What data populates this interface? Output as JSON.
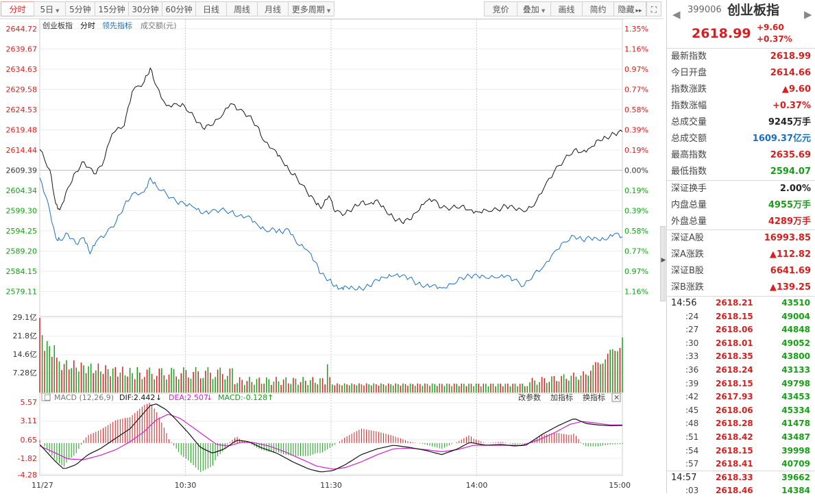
{
  "toolbar": {
    "left": [
      {
        "label": "分时",
        "active": true,
        "dd": false
      },
      {
        "label": "5日",
        "active": false,
        "dd": true
      },
      {
        "label": "5分钟",
        "active": false,
        "dd": false
      },
      {
        "label": "15分钟",
        "active": false,
        "dd": false
      },
      {
        "label": "30分钟",
        "active": false,
        "dd": false
      },
      {
        "label": "60分钟",
        "active": false,
        "dd": false
      },
      {
        "label": "日线",
        "active": false,
        "dd": false
      },
      {
        "label": "周线",
        "active": false,
        "dd": false
      },
      {
        "label": "月线",
        "active": false,
        "dd": false
      },
      {
        "label": "更多周期",
        "active": false,
        "dd": true
      }
    ],
    "right": [
      {
        "label": "竞价",
        "dd": false
      },
      {
        "label": "叠加",
        "dd": true
      },
      {
        "label": "画线",
        "dd": false
      },
      {
        "label": "简约",
        "dd": false
      },
      {
        "label": "隐藏",
        "dd": false,
        "arrows": "▸▸"
      }
    ],
    "fullscreen_icon": "fullscreen-icon"
  },
  "legend": {
    "name": "创业板指",
    "mode": "分时",
    "lead": "领先指标",
    "turnover": "成交额(元)"
  },
  "price_axis": {
    "left": [
      "2644.72",
      "2639.67",
      "2634.63",
      "2629.58",
      "2624.53",
      "2619.48",
      "2614.44",
      "2609.39",
      "2604.34",
      "2599.30",
      "2594.25",
      "2589.20",
      "2584.15",
      "2579.11"
    ],
    "right": [
      "1.35%",
      "1.16%",
      "0.97%",
      "0.77%",
      "0.58%",
      "0.39%",
      "0.19%",
      "0.00%",
      "0.19%",
      "0.39%",
      "0.58%",
      "0.77%",
      "0.97%",
      "1.16%"
    ]
  },
  "volume_axis": [
    "29.1亿",
    "21.8亿",
    "14.6亿",
    "7.28亿"
  ],
  "macd": {
    "title": "MACD (12,26,9)",
    "dif": "DIF:2.442",
    "dea": "DEA:2.507",
    "macd": "MACD:-0.128",
    "change_params": "改参数",
    "add_indicator": "加指标",
    "switch_indicator": "换指标",
    "axis": [
      "5.57",
      "3.11",
      "0.65",
      "-1.82",
      "-4.28"
    ]
  },
  "time_axis": [
    "11/27",
    "10:30",
    "11:30",
    "14:00",
    "15:00"
  ],
  "chart_data": {
    "type": "line",
    "x_range": [
      "09:30",
      "15:00"
    ],
    "ylim": [
      2579.11,
      2644.72
    ],
    "prev_close": 2609.39,
    "series": [
      {
        "name": "创业板指",
        "color": "#111111",
        "points": [
          [
            0,
            2614.6
          ],
          [
            5,
            2609.5
          ],
          [
            8,
            2601.0
          ],
          [
            10,
            2599.5
          ],
          [
            14,
            2605.0
          ],
          [
            18,
            2609.0
          ],
          [
            22,
            2611.5
          ],
          [
            27,
            2608.5
          ],
          [
            31,
            2610.5
          ],
          [
            36,
            2618.5
          ],
          [
            42,
            2620.5
          ],
          [
            46,
            2629.0
          ],
          [
            52,
            2631.5
          ],
          [
            55,
            2634.9
          ],
          [
            58,
            2630.5
          ],
          [
            63,
            2625.5
          ],
          [
            68,
            2626.0
          ],
          [
            72,
            2625.5
          ],
          [
            77,
            2622.5
          ],
          [
            81,
            2620.0
          ],
          [
            85,
            2620.5
          ],
          [
            90,
            2622.5
          ],
          [
            95,
            2626.0
          ],
          [
            99,
            2624.5
          ],
          [
            104,
            2623.0
          ],
          [
            108,
            2620.5
          ],
          [
            112,
            2616.5
          ],
          [
            117,
            2614.5
          ],
          [
            120,
            2612.5
          ],
          [
            124,
            2609.5
          ],
          [
            128,
            2607.5
          ],
          [
            133,
            2604.0
          ],
          [
            137,
            2601.5
          ],
          [
            140,
            2599.8
          ],
          [
            144,
            2603.0
          ],
          [
            147,
            2599.0
          ],
          [
            152,
            2598.5
          ],
          [
            156,
            2600.0
          ],
          [
            160,
            2601.5
          ],
          [
            164,
            2601.0
          ],
          [
            168,
            2602.0
          ],
          [
            172,
            2599.5
          ],
          [
            176,
            2597.5
          ],
          [
            180,
            2596.5
          ],
          [
            184,
            2597.0
          ],
          [
            188,
            2599.0
          ],
          [
            192,
            2601.5
          ],
          [
            196,
            2602.0
          ],
          [
            200,
            2600.0
          ],
          [
            205,
            2600.0
          ],
          [
            210,
            2600.5
          ],
          [
            214,
            2599.5
          ],
          [
            218,
            2599.0
          ],
          [
            222,
            2599.5
          ],
          [
            228,
            2599.5
          ],
          [
            232,
            2600.5
          ],
          [
            236,
            2600.0
          ],
          [
            241,
            2599.0
          ],
          [
            246,
            2600.5
          ],
          [
            251,
            2605.0
          ],
          [
            256,
            2609.0
          ],
          [
            261,
            2612.0
          ],
          [
            266,
            2614.5
          ],
          [
            270,
            2614.0
          ],
          [
            274,
            2615.0
          ],
          [
            278,
            2617.0
          ],
          [
            282,
            2617.5
          ],
          [
            286,
            2618.5
          ],
          [
            290,
            2619.0
          ]
        ]
      },
      {
        "name": "领先指标",
        "color": "#1a6fc0",
        "points": [
          [
            0,
            2607.5
          ],
          [
            4,
            2601.5
          ],
          [
            8,
            2592.5
          ],
          [
            10,
            2592.0
          ],
          [
            14,
            2593.5
          ],
          [
            18,
            2591.0
          ],
          [
            22,
            2592.5
          ],
          [
            25,
            2588.5
          ],
          [
            28,
            2591.5
          ],
          [
            33,
            2593.5
          ],
          [
            38,
            2596.5
          ],
          [
            42,
            2600.5
          ],
          [
            46,
            2603.5
          ],
          [
            52,
            2604.0
          ],
          [
            55,
            2607.5
          ],
          [
            58,
            2605.5
          ],
          [
            63,
            2603.5
          ],
          [
            68,
            2601.5
          ],
          [
            72,
            2601.0
          ],
          [
            77,
            2600.0
          ],
          [
            81,
            2598.5
          ],
          [
            85,
            2599.0
          ],
          [
            90,
            2599.5
          ],
          [
            95,
            2599.0
          ],
          [
            99,
            2598.0
          ],
          [
            104,
            2598.0
          ],
          [
            108,
            2596.0
          ],
          [
            112,
            2594.5
          ],
          [
            117,
            2594.5
          ],
          [
            120,
            2594.0
          ],
          [
            124,
            2594.5
          ],
          [
            128,
            2591.0
          ],
          [
            133,
            2589.5
          ],
          [
            137,
            2586.5
          ],
          [
            140,
            2583.5
          ],
          [
            144,
            2582.0
          ],
          [
            147,
            2580.5
          ],
          [
            150,
            2579.9
          ],
          [
            152,
            2580.5
          ],
          [
            156,
            2580.0
          ],
          [
            160,
            2579.8
          ],
          [
            164,
            2580.5
          ],
          [
            168,
            2582.0
          ],
          [
            172,
            2582.5
          ],
          [
            176,
            2583.0
          ],
          [
            180,
            2583.0
          ],
          [
            184,
            2582.5
          ],
          [
            188,
            2581.0
          ],
          [
            192,
            2580.5
          ],
          [
            196,
            2580.8
          ],
          [
            200,
            2580.0
          ],
          [
            205,
            2581.0
          ],
          [
            210,
            2582.5
          ],
          [
            214,
            2583.0
          ],
          [
            218,
            2583.0
          ],
          [
            222,
            2582.5
          ],
          [
            228,
            2582.5
          ],
          [
            232,
            2583.0
          ],
          [
            236,
            2582.0
          ],
          [
            241,
            2580.5
          ],
          [
            246,
            2583.5
          ],
          [
            251,
            2585.5
          ],
          [
            256,
            2589.0
          ],
          [
            261,
            2591.5
          ],
          [
            266,
            2593.0
          ],
          [
            270,
            2592.0
          ],
          [
            274,
            2592.5
          ],
          [
            278,
            2592.0
          ],
          [
            282,
            2592.0
          ],
          [
            286,
            2593.5
          ],
          [
            290,
            2592.8
          ]
        ]
      }
    ],
    "volume": {
      "ylim": [
        0,
        29.1
      ],
      "unit": "亿"
    },
    "macd_range": [
      -4.28,
      5.57
    ]
  },
  "panel": {
    "code": "399006",
    "name": "创业板指",
    "price": "2618.99",
    "change": "+9.60",
    "change_pct": "+0.37%",
    "rows": [
      {
        "k": "最新指数",
        "v": "2618.99",
        "c": "red"
      },
      {
        "k": "今日开盘",
        "v": "2614.66",
        "c": "red"
      },
      {
        "k": "指数涨跌",
        "v": "▲9.60",
        "c": "red"
      },
      {
        "k": "指数涨幅",
        "v": "+0.37%",
        "c": "red"
      },
      {
        "k": "总成交量",
        "v": "9245万手",
        "c": "black"
      },
      {
        "k": "总成交额",
        "v": "1609.37亿元",
        "c": "blue"
      },
      {
        "k": "最高指数",
        "v": "2635.69",
        "c": "red"
      },
      {
        "k": "最低指数",
        "v": "2594.07",
        "c": "green"
      },
      {
        "k": "深证换手",
        "v": "2.00%",
        "c": "black"
      },
      {
        "k": "内盘总量",
        "v": "4955万手",
        "c": "green"
      },
      {
        "k": "外盘总量",
        "v": "4289万手",
        "c": "red"
      },
      {
        "k": "深证A股",
        "v": "16993.85",
        "c": "red"
      },
      {
        "k": "深A涨跌",
        "v": "▲112.82",
        "c": "red"
      },
      {
        "k": "深证B股",
        "v": "6641.69",
        "c": "red"
      },
      {
        "k": "深B涨跌",
        "v": "▲139.25",
        "c": "red"
      }
    ],
    "ticks": [
      {
        "t": "14:56",
        "p": "2618.21",
        "q": "43510",
        "big": true
      },
      {
        "t": ":24",
        "p": "2618.15",
        "q": "49004"
      },
      {
        "t": ":27",
        "p": "2618.06",
        "q": "44848"
      },
      {
        "t": ":30",
        "p": "2618.01",
        "q": "49052"
      },
      {
        "t": ":33",
        "p": "2618.35",
        "q": "43800"
      },
      {
        "t": ":36",
        "p": "2618.24",
        "q": "43133"
      },
      {
        "t": ":39",
        "p": "2618.15",
        "q": "49798"
      },
      {
        "t": ":42",
        "p": "2617.93",
        "q": "43453"
      },
      {
        "t": ":45",
        "p": "2618.06",
        "q": "45334"
      },
      {
        "t": ":48",
        "p": "2618.28",
        "q": "41478"
      },
      {
        "t": ":51",
        "p": "2618.42",
        "q": "43487"
      },
      {
        "t": ":54",
        "p": "2618.15",
        "q": "39998"
      },
      {
        "t": ":57",
        "p": "2618.41",
        "q": "40709"
      },
      {
        "t": "14:57",
        "p": "2618.33",
        "q": "39662",
        "big": true
      },
      {
        "t": ":03",
        "p": "2618.46",
        "q": "14384"
      }
    ]
  }
}
